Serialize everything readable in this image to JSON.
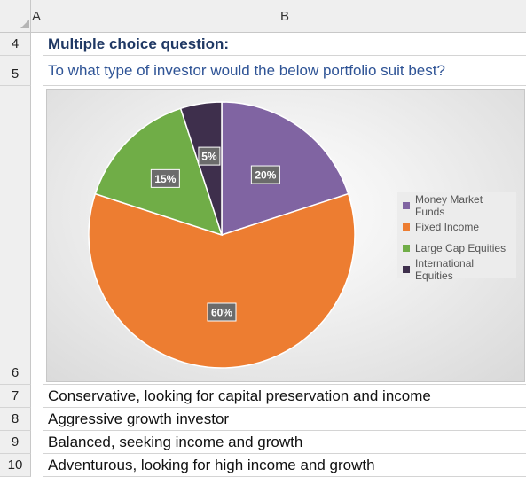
{
  "columns": {
    "a": "A",
    "b": "B"
  },
  "rows": [
    {
      "num": "4",
      "text": "Multiple choice question:"
    },
    {
      "num": "5",
      "text": "To what type of investor would the below portfolio suit best?"
    },
    {
      "num": "6",
      "text": ""
    },
    {
      "num": "7",
      "text": "Conservative, looking for capital preservation and income"
    },
    {
      "num": "8",
      "text": "Aggressive growth investor"
    },
    {
      "num": "9",
      "text": "Balanced, seeking income and growth"
    },
    {
      "num": "10",
      "text": "Adventurous, looking for high income and growth"
    }
  ],
  "chart_data": {
    "type": "pie",
    "categories": [
      "Money Market Funds",
      "Fixed Income",
      "Large Cap Equities",
      "International Equities"
    ],
    "values": [
      20,
      60,
      15,
      5
    ],
    "labels": [
      "20%",
      "60%",
      "15%",
      "5%"
    ],
    "colors": [
      "#8064a2",
      "#ed7d31",
      "#70ad47",
      "#3e2f4c"
    ],
    "legend": "right"
  }
}
